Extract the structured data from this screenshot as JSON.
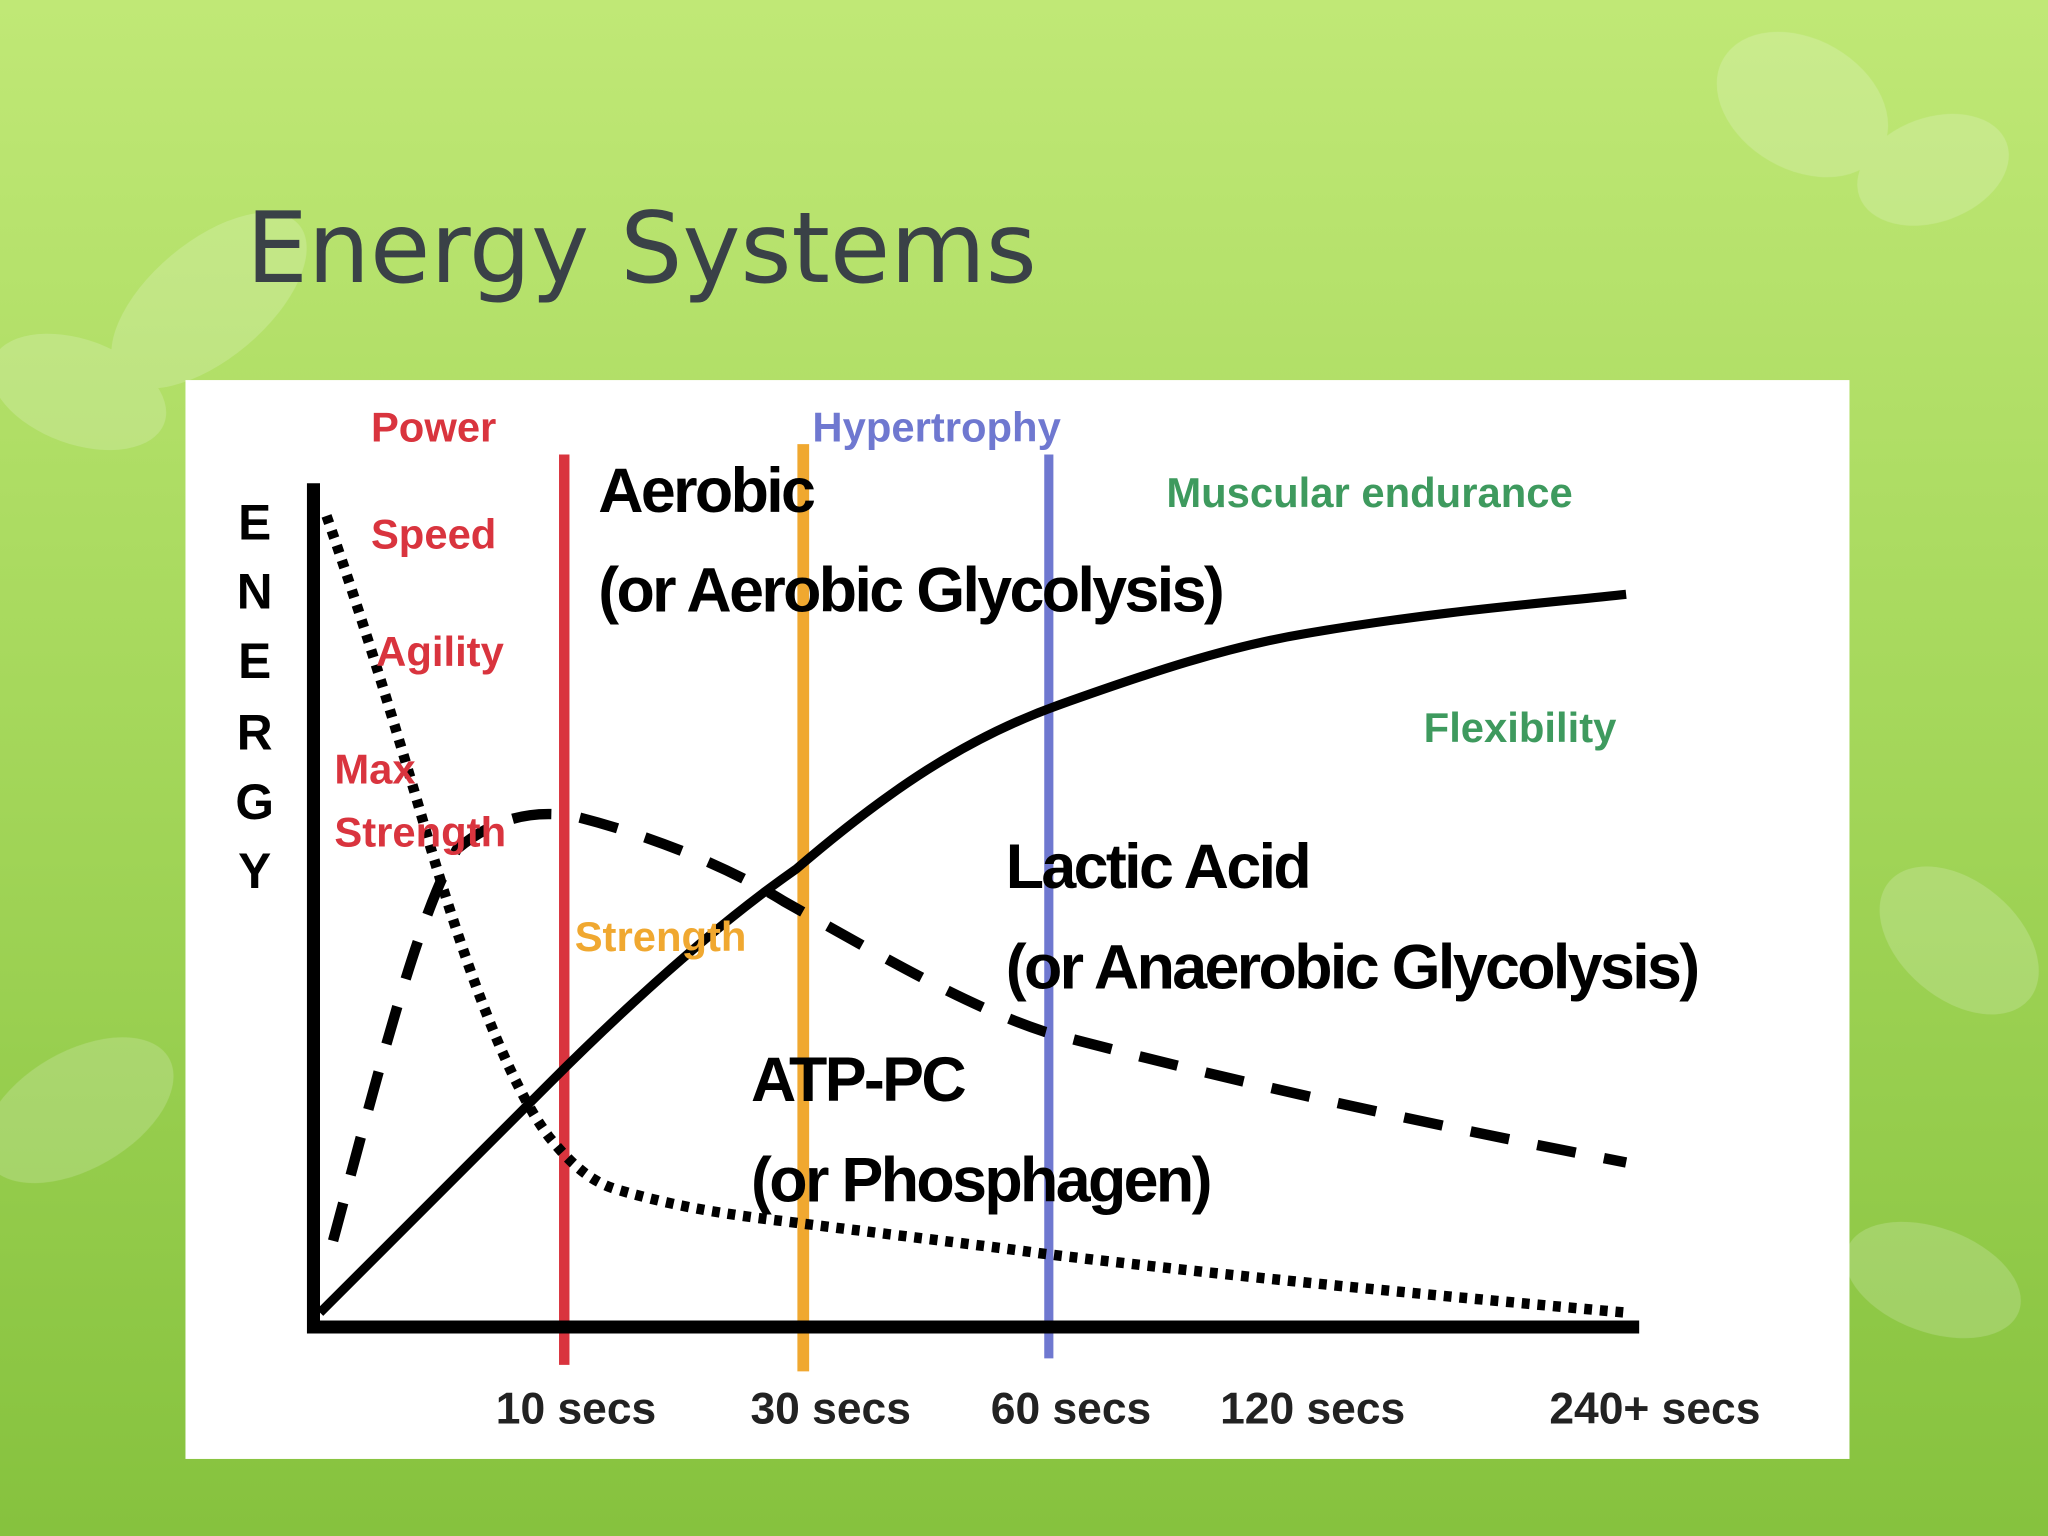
{
  "title": "Energy Systems",
  "diagram": {
    "y_label_letters": [
      "E",
      "N",
      "E",
      "R",
      "G",
      "Y"
    ],
    "x_labels": [
      "10 secs",
      "30 secs",
      "60 secs",
      "120 secs",
      "240+ secs"
    ],
    "systems": [
      {
        "name": "Aerobic",
        "subtitle": "(or Aerobic Glycolysis)"
      },
      {
        "name": "Lactic Acid",
        "subtitle": "(or Anaerobic Glycolysis)"
      },
      {
        "name": "ATP-PC",
        "subtitle": "(or Phosphagen)"
      }
    ],
    "zones": [
      {
        "color": "#d9343e",
        "labels": [
          "Power",
          "Speed",
          "Agility",
          "Max",
          "Strength"
        ]
      },
      {
        "color": "#f0a830",
        "labels": [
          "Strength"
        ]
      },
      {
        "color": "#6f78d0",
        "labels": [
          "Hypertrophy"
        ]
      },
      {
        "color": "#3e9a5e",
        "labels": [
          "Muscular endurance",
          "Flexibility"
        ]
      }
    ]
  }
}
